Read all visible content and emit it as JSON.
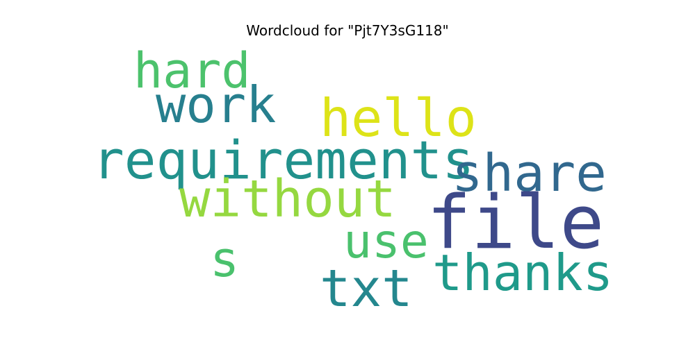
{
  "chart_data": {
    "type": "wordcloud",
    "title": "Wordcloud for \"Pjt7Y3sG118\"",
    "words": [
      {
        "text": "hard",
        "color": "#4cc26c"
      },
      {
        "text": "work",
        "color": "#277f8e"
      },
      {
        "text": "hello",
        "color": "#dde318"
      },
      {
        "text": "requirements",
        "color": "#21918c"
      },
      {
        "text": "share",
        "color": "#31688e"
      },
      {
        "text": "without",
        "color": "#95d840"
      },
      {
        "text": "file",
        "color": "#3e4989"
      },
      {
        "text": "use",
        "color": "#4ac16d"
      },
      {
        "text": "s",
        "color": "#4ac16d"
      },
      {
        "text": "thanks",
        "color": "#1f9a8a"
      },
      {
        "text": "txt",
        "color": "#24878e"
      }
    ]
  }
}
